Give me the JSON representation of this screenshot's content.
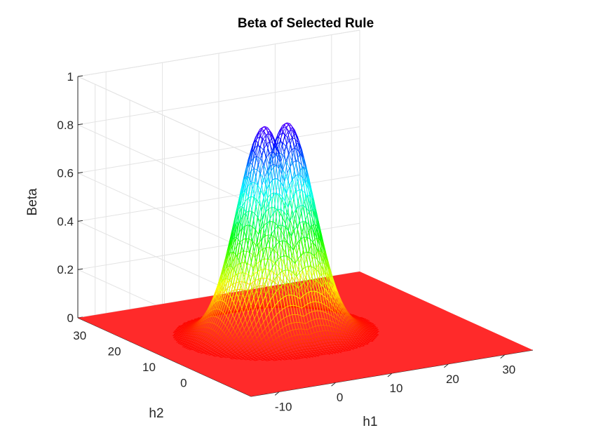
{
  "chart_data": {
    "type": "surface-mesh",
    "title": "Beta of Selected Rule",
    "xlabel": "h1",
    "ylabel": "h2",
    "zlabel": "Beta",
    "xlim": [
      -15,
      35
    ],
    "ylim": [
      -15,
      35
    ],
    "zlim": [
      0,
      1
    ],
    "x_ticks": [
      "-10",
      "0",
      "10",
      "20",
      "30"
    ],
    "x_tick_values": [
      -10,
      0,
      10,
      20,
      30
    ],
    "y_ticks": [
      "0",
      "10",
      "20",
      "30"
    ],
    "y_tick_values": [
      0,
      10,
      20,
      30
    ],
    "z_ticks": [
      "0",
      "0.2",
      "0.4",
      "0.6",
      "0.8",
      "1"
    ],
    "z_tick_values": [
      0,
      0.2,
      0.4,
      0.6,
      0.8,
      1
    ],
    "grid": true,
    "colormap": "hsv",
    "peaks": [
      {
        "h1": 4,
        "h2": 12,
        "beta": 0.87
      },
      {
        "h1": 8,
        "h2": 12,
        "beta": 0.87
      }
    ],
    "mesh_x_range": [
      -15,
      35
    ],
    "mesh_y_range": [
      -15,
      35
    ]
  }
}
